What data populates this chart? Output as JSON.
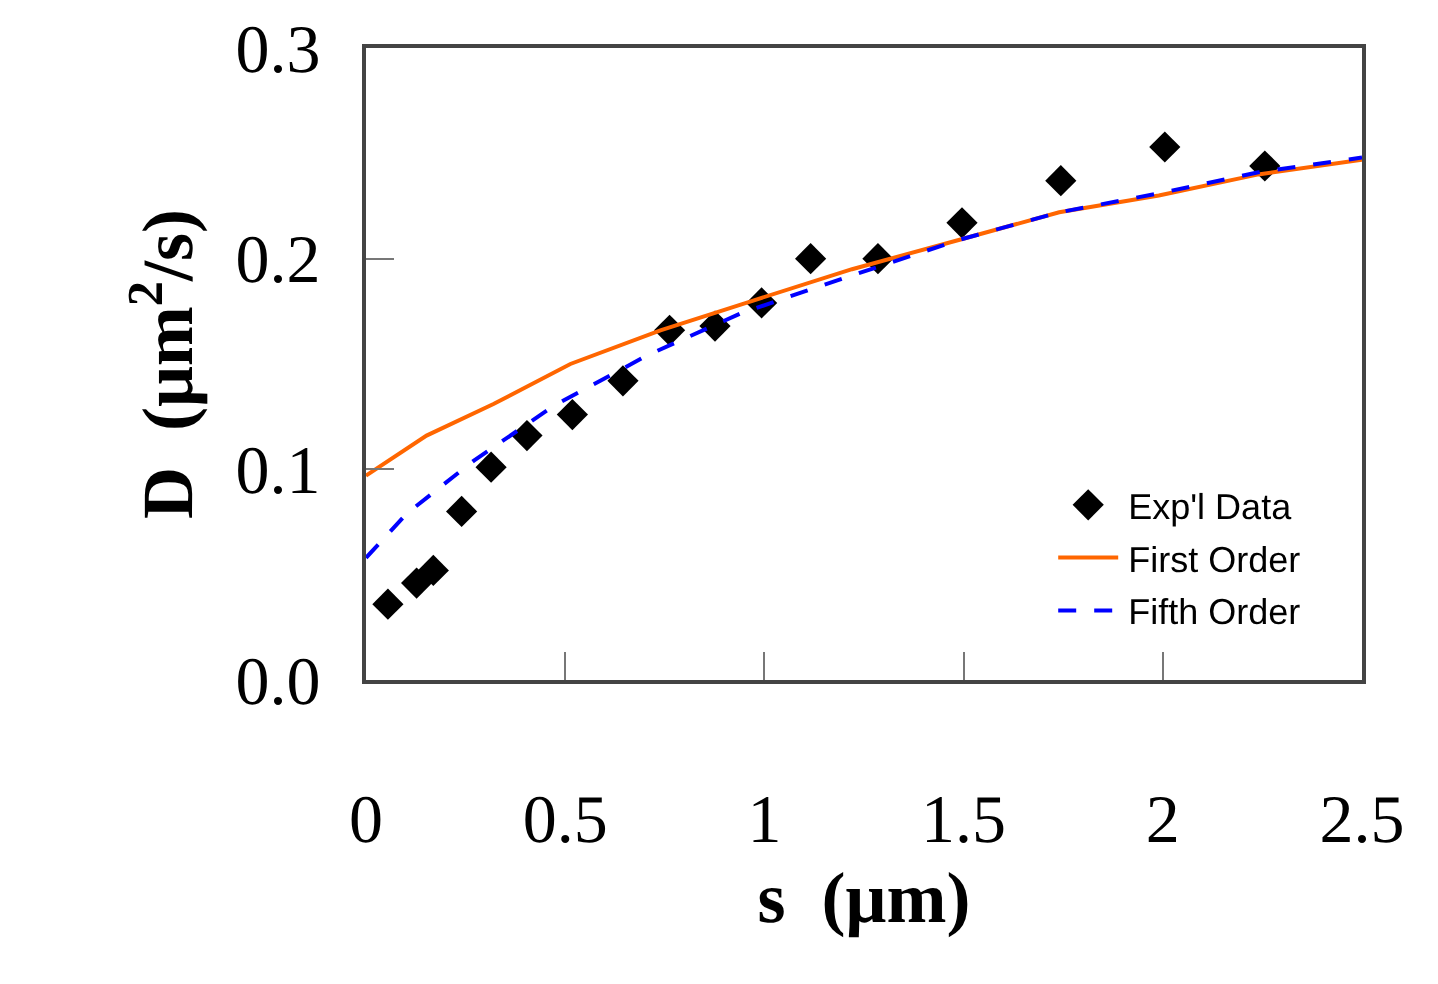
{
  "chart_data": {
    "type": "line",
    "xlabel": "s  (μm)",
    "ylabel": "D  (μm$^{2}$/s)",
    "xlim": [
      0,
      2.5
    ],
    "xticks": [
      0,
      0.5,
      1,
      1.5,
      2,
      2.5
    ],
    "ylim": [
      0,
      0.3
    ],
    "yticks": [
      {
        "value": 0,
        "label": "0.0"
      },
      {
        "value": 0.1,
        "label": "0.1"
      },
      {
        "value": 0.2,
        "label": "0.2"
      },
      {
        "value": 0.3,
        "label": "0.3"
      }
    ],
    "grid": false,
    "legend": "bottom right",
    "series": [
      {
        "name": "Exp'l Data",
        "type": "scatter",
        "marker": "diamond",
        "color": "#000000",
        "x": [
          0.055,
          0.127,
          0.169,
          0.24,
          0.314,
          0.404,
          0.518,
          0.645,
          0.762,
          0.876,
          0.993,
          1.116,
          1.285,
          1.496,
          1.744,
          2.005,
          2.256
        ],
        "values": [
          0.036,
          0.046,
          0.052,
          0.08,
          0.101,
          0.116,
          0.126,
          0.142,
          0.166,
          0.168,
          0.179,
          0.2,
          0.2,
          0.217,
          0.237,
          0.253,
          0.244
        ]
      },
      {
        "name": "First Order",
        "line_style": "solid",
        "color": "#ff6600",
        "x": [
          0,
          0.152,
          0.32,
          0.513,
          0.739,
          0.97,
          1.22,
          1.49,
          1.74,
          1.99,
          2.24,
          2.5
        ],
        "values": [
          0.097,
          0.116,
          0.131,
          0.15,
          0.166,
          0.18,
          0.195,
          0.209,
          0.222,
          0.23,
          0.24,
          0.247
        ]
      },
      {
        "name": "Fifth Order",
        "line_style": "dashed",
        "color": "#0000ff",
        "x": [
          0,
          0.102,
          0.27,
          0.47,
          0.705,
          0.94,
          1.14,
          1.49,
          1.74,
          1.99,
          2.24,
          2.5
        ],
        "values": [
          0.058,
          0.079,
          0.104,
          0.13,
          0.154,
          0.174,
          0.187,
          0.209,
          0.222,
          0.231,
          0.241,
          0.248
        ]
      }
    ]
  }
}
